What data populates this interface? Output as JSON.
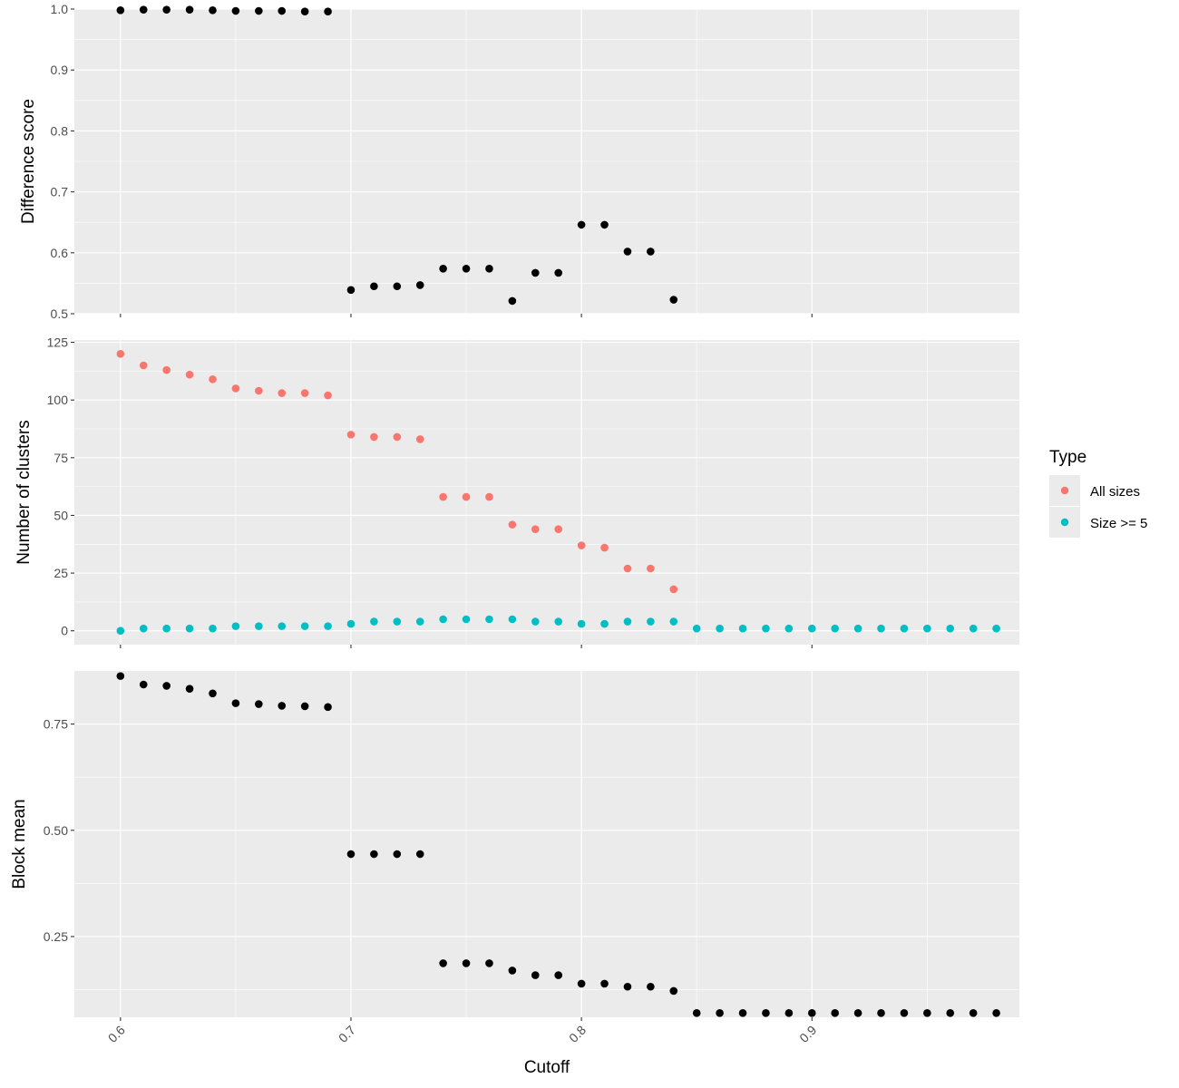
{
  "chart_data": [
    {
      "type": "scatter",
      "title": "",
      "xlabel": "",
      "ylabel": "Difference score",
      "xlim": [
        0.58,
        0.99
      ],
      "ylim": [
        0.5,
        1.0
      ],
      "y_ticks": [
        "0.5",
        "0.6",
        "0.7",
        "0.8",
        "0.9",
        "1.0"
      ],
      "series": [
        {
          "color": "#000000",
          "x": [
            0.6,
            0.61,
            0.62,
            0.63,
            0.64,
            0.65,
            0.66,
            0.67,
            0.68,
            0.69,
            0.7,
            0.71,
            0.72,
            0.73,
            0.74,
            0.75,
            0.76,
            0.77,
            0.78,
            0.79,
            0.8,
            0.81,
            0.82,
            0.83,
            0.84
          ],
          "y": [
            0.998,
            0.999,
            0.999,
            0.999,
            0.998,
            0.997,
            0.997,
            0.997,
            0.996,
            0.996,
            0.539,
            0.545,
            0.545,
            0.547,
            0.574,
            0.574,
            0.574,
            0.521,
            0.567,
            0.567,
            0.646,
            0.646,
            0.602,
            0.602,
            0.523
          ]
        }
      ]
    },
    {
      "type": "scatter",
      "title": "",
      "xlabel": "",
      "ylabel": "Number of clusters",
      "xlim": [
        0.58,
        0.99
      ],
      "ylim": [
        -6,
        126
      ],
      "y_ticks": [
        "0",
        "25",
        "50",
        "75",
        "100",
        "125"
      ],
      "legend_title": "Type",
      "legend_position": "right",
      "series": [
        {
          "name": "All sizes",
          "color": "#F8766D",
          "x": [
            0.6,
            0.61,
            0.62,
            0.63,
            0.64,
            0.65,
            0.66,
            0.67,
            0.68,
            0.69,
            0.7,
            0.71,
            0.72,
            0.73,
            0.74,
            0.75,
            0.76,
            0.77,
            0.78,
            0.79,
            0.8,
            0.81,
            0.82,
            0.83,
            0.84
          ],
          "y": [
            120,
            115,
            113,
            111,
            109,
            105,
            104,
            103,
            103,
            102,
            85,
            84,
            84,
            83,
            58,
            58,
            58,
            46,
            44,
            44,
            37,
            36,
            27,
            27,
            18
          ]
        },
        {
          "name": "Size >= 5",
          "color": "#00BFC4",
          "x": [
            0.6,
            0.61,
            0.62,
            0.63,
            0.64,
            0.65,
            0.66,
            0.67,
            0.68,
            0.69,
            0.7,
            0.71,
            0.72,
            0.73,
            0.74,
            0.75,
            0.76,
            0.77,
            0.78,
            0.79,
            0.8,
            0.81,
            0.82,
            0.83,
            0.84,
            0.85,
            0.86,
            0.87,
            0.88,
            0.89,
            0.9,
            0.91,
            0.92,
            0.93,
            0.94,
            0.95,
            0.96,
            0.97,
            0.98
          ],
          "y": [
            0,
            1,
            1,
            1,
            1,
            2,
            2,
            2,
            2,
            2,
            3,
            4,
            4,
            4,
            5,
            5,
            5,
            5,
            4,
            4,
            3,
            3,
            4,
            4,
            4,
            1,
            1,
            1,
            1,
            1,
            1,
            1,
            1,
            1,
            1,
            1,
            1,
            1,
            1
          ]
        }
      ]
    },
    {
      "type": "scatter",
      "title": "",
      "xlabel": "Cutoff",
      "ylabel": "Block mean",
      "xlim": [
        0.58,
        0.99
      ],
      "ylim": [
        0.06,
        0.875
      ],
      "y_ticks": [
        "0.25",
        "0.50",
        "0.75"
      ],
      "x_ticks": [
        "0.6",
        "0.7",
        "0.8",
        "0.9"
      ],
      "series": [
        {
          "color": "#000000",
          "x": [
            0.6,
            0.61,
            0.62,
            0.63,
            0.64,
            0.65,
            0.66,
            0.67,
            0.68,
            0.69,
            0.7,
            0.71,
            0.72,
            0.73,
            0.74,
            0.75,
            0.76,
            0.77,
            0.78,
            0.79,
            0.8,
            0.81,
            0.82,
            0.83,
            0.84,
            0.85,
            0.86,
            0.87,
            0.88,
            0.89,
            0.9,
            0.91,
            0.92,
            0.93,
            0.94,
            0.95,
            0.96,
            0.97,
            0.98
          ],
          "y": [
            0.863,
            0.843,
            0.84,
            0.833,
            0.822,
            0.799,
            0.797,
            0.793,
            0.792,
            0.79,
            0.444,
            0.444,
            0.444,
            0.444,
            0.187,
            0.187,
            0.187,
            0.17,
            0.159,
            0.159,
            0.139,
            0.139,
            0.132,
            0.132,
            0.122,
            0.07,
            0.07,
            0.07,
            0.07,
            0.07,
            0.07,
            0.07,
            0.07,
            0.07,
            0.07,
            0.07,
            0.07,
            0.07,
            0.07
          ]
        }
      ]
    }
  ]
}
